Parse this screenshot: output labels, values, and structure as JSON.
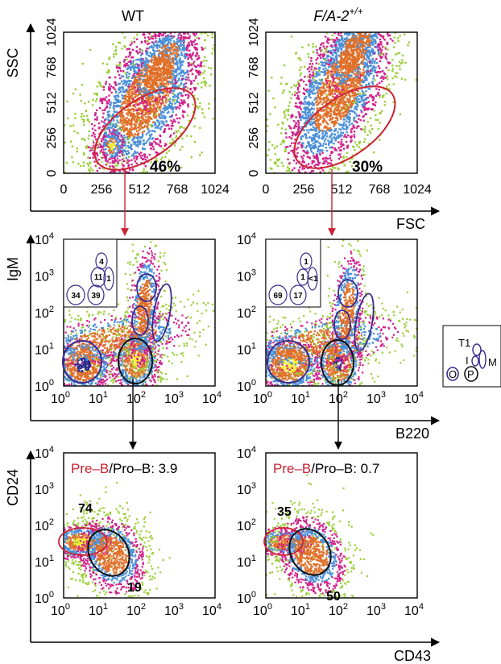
{
  "columns": [
    {
      "title": "WT",
      "italic": false
    },
    {
      "title": "F/A-2",
      "superscript": "+/+",
      "italic": true
    }
  ],
  "row1": {
    "ylabel": "SSC",
    "xlabel": "FSC",
    "ticks": [
      "0",
      "256",
      "512",
      "768",
      "1024"
    ],
    "gate_percent": [
      "46%",
      "30%"
    ]
  },
  "row2": {
    "ylabel": "IgM",
    "xlabel": "B220",
    "ticks": [
      "10",
      "10",
      "10",
      "10",
      "10"
    ],
    "exponents": [
      "0",
      "1",
      "2",
      "3",
      "4"
    ],
    "inset_values": [
      {
        "a": "4",
        "b": "11",
        "c": "1",
        "d": "34",
        "e": "39"
      },
      {
        "a": "1",
        "b": "1",
        "c": "<1",
        "d": "69",
        "e": "17"
      }
    ]
  },
  "row3": {
    "ylabel": "CD24",
    "xlabel": "CD43",
    "ticks": [
      "10",
      "10",
      "10",
      "10",
      "10"
    ],
    "exponents": [
      "0",
      "1",
      "2",
      "3",
      "4"
    ],
    "ratio_prefix": "Pre–B",
    "ratio_suffix": [
      "/Pro–B: 3.9",
      "/Pro–B: 0.7"
    ],
    "upper_gate": [
      "74",
      "35"
    ],
    "lower_gate": [
      "19",
      "50"
    ]
  },
  "legend": {
    "T1": "T1",
    "I": "I",
    "M": "M",
    "O": "O",
    "P": "P"
  },
  "colors": {
    "gate_red": "#cc2233",
    "gate_purple": "#3a2a8c",
    "gate_black": "#111111",
    "density": [
      "#9ccf3a",
      "#d0218a",
      "#4a8fd8",
      "#e0702a",
      "#f4ec2a",
      "#2a2a8a"
    ]
  }
}
